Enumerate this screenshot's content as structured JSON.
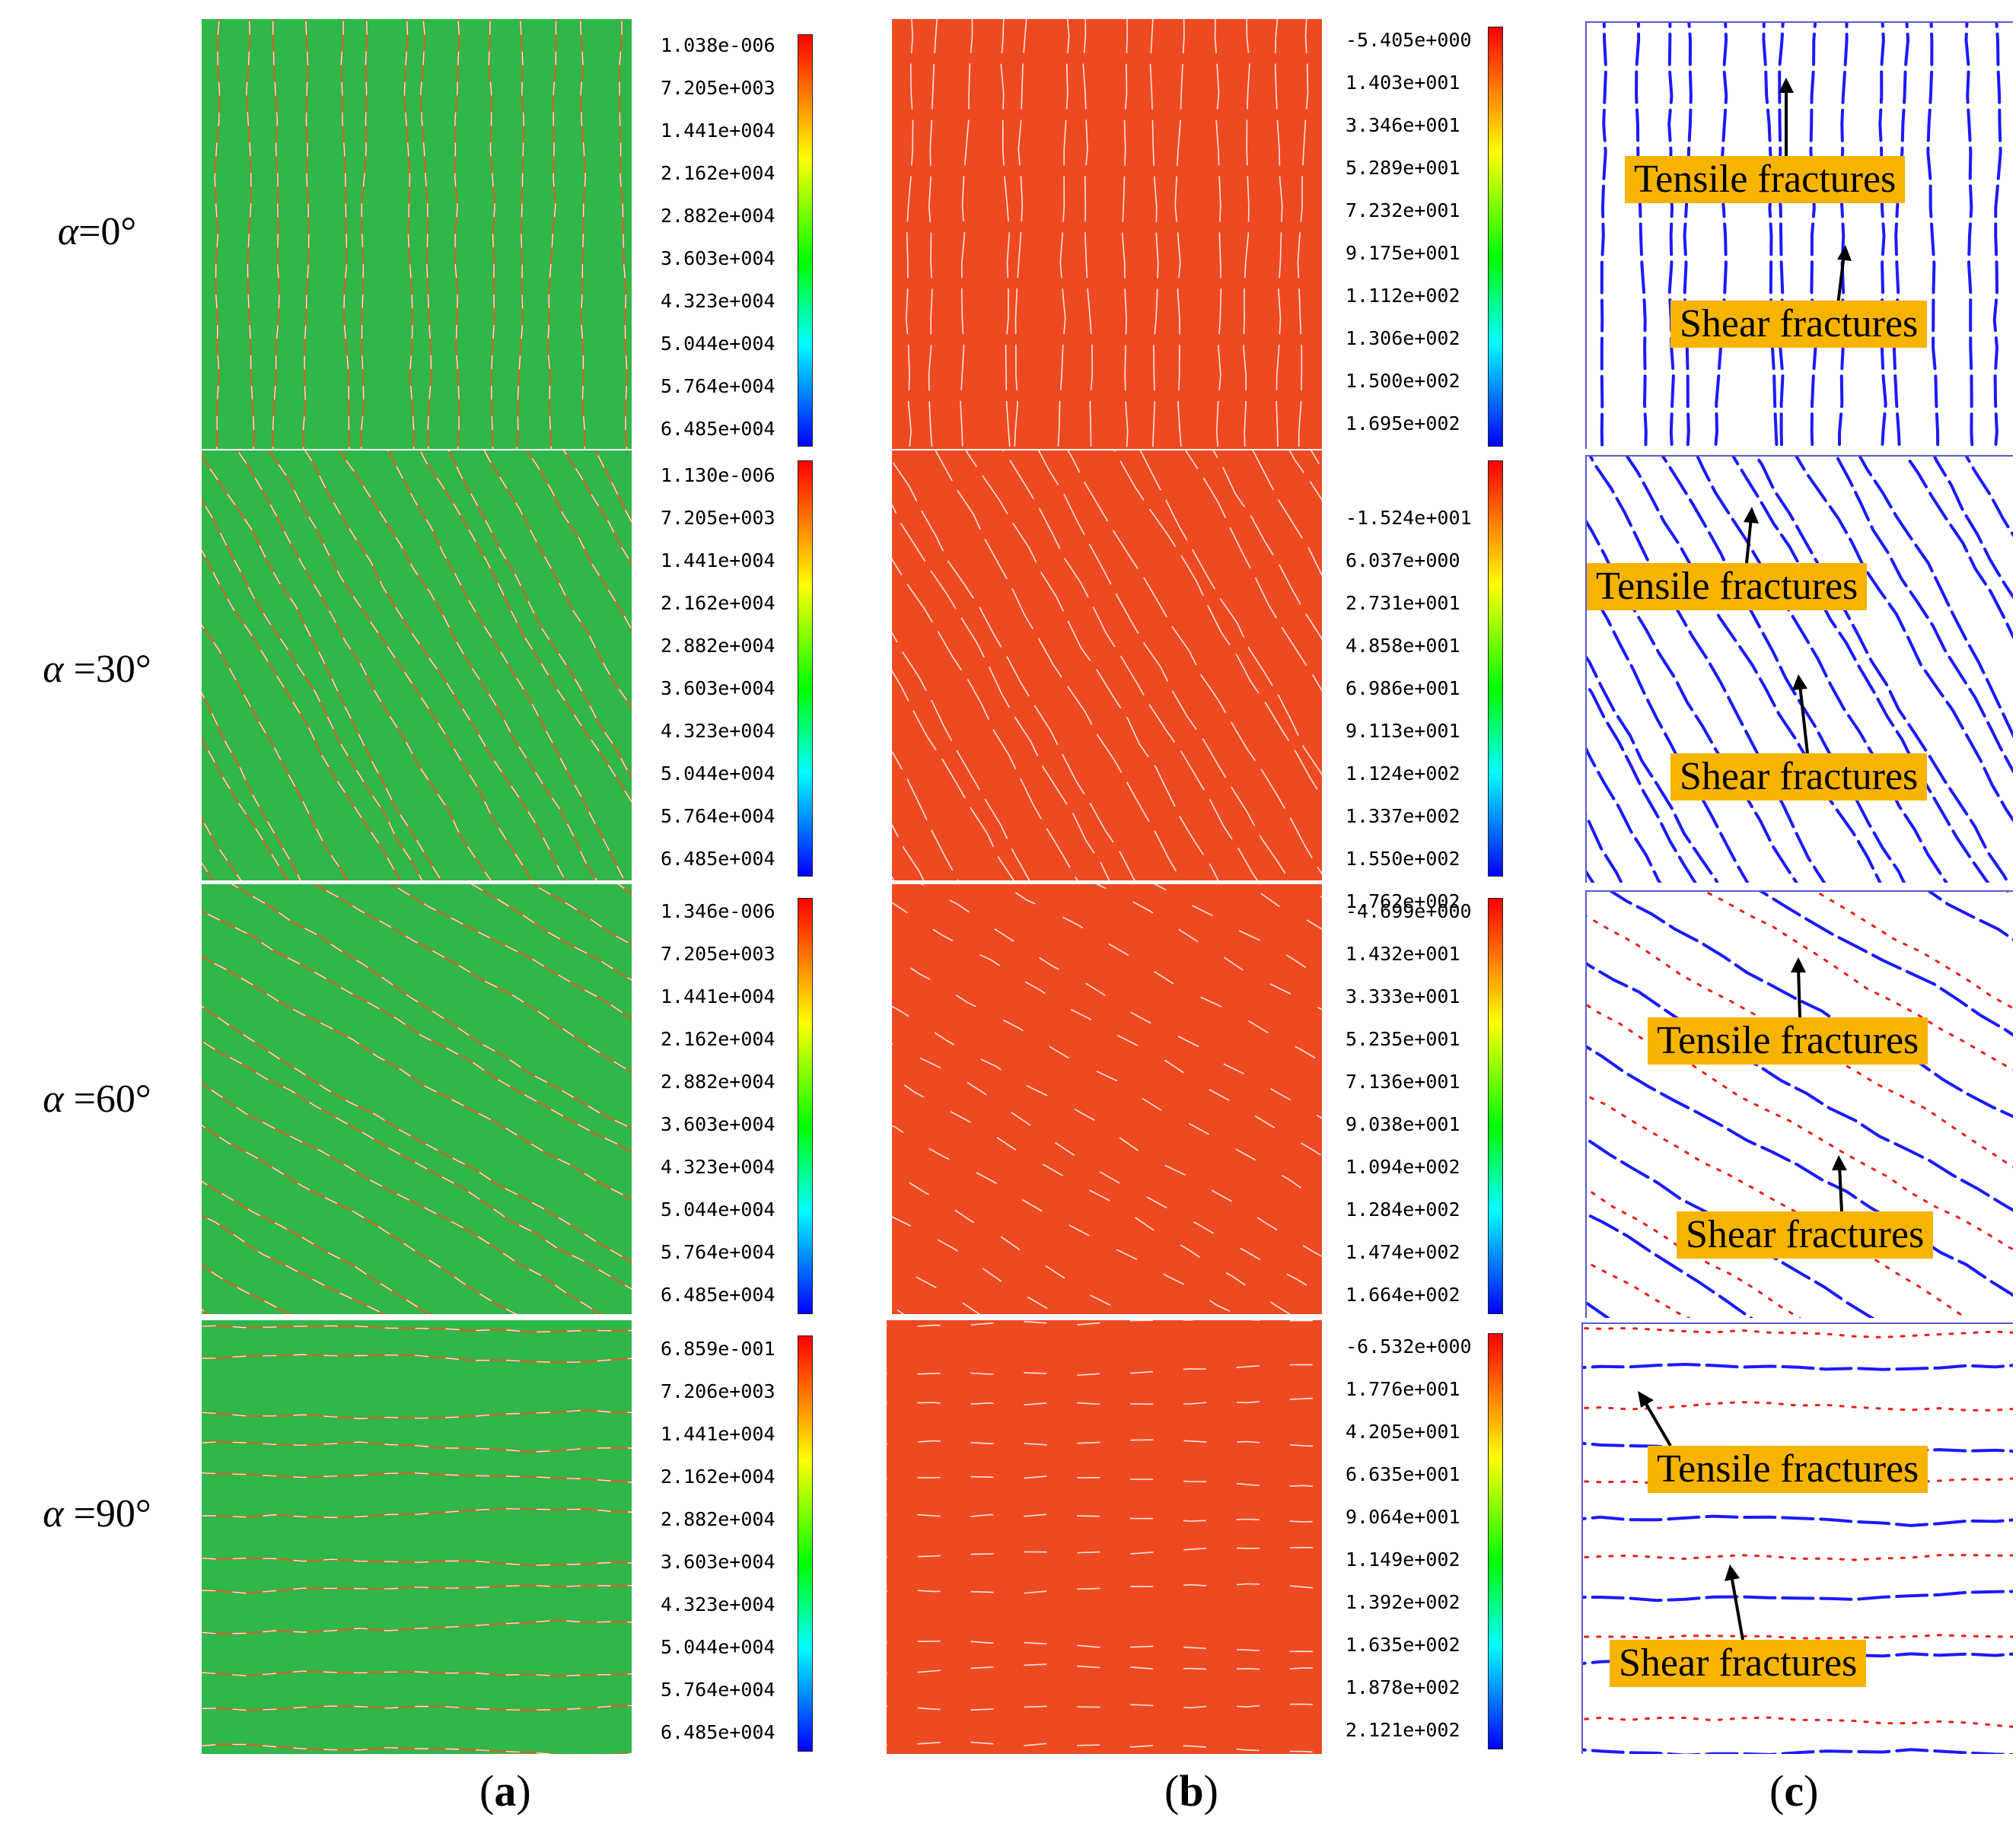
{
  "rows": [
    {
      "label_prefix": "α",
      "label_value": "=0°",
      "scale_a": [
        "1.038e-006",
        "7.205e+003",
        "1.441e+004",
        "2.162e+004",
        "2.882e+004",
        "3.603e+004",
        "4.323e+004",
        "5.044e+004",
        "5.764e+004",
        "6.485e+004"
      ],
      "scale_b": [
        "-5.405e+000",
        "1.403e+001",
        "3.346e+001",
        "5.289e+001",
        "7.232e+001",
        "9.175e+001",
        "1.112e+002",
        "1.306e+002",
        "1.500e+002",
        "1.695e+002"
      ],
      "tensile": "Tensile fractures",
      "shear": "Shear fractures"
    },
    {
      "label_prefix": "α",
      "label_value": " =30°",
      "scale_a": [
        "1.130e-006",
        "7.205e+003",
        "1.441e+004",
        "2.162e+004",
        "2.882e+004",
        "3.603e+004",
        "4.323e+004",
        "5.044e+004",
        "5.764e+004",
        "6.485e+004"
      ],
      "scale_b": [
        "-1.524e+001",
        "6.037e+000",
        "2.731e+001",
        "4.858e+001",
        "6.986e+001",
        "9.113e+001",
        "1.124e+002",
        "1.337e+002",
        "1.550e+002",
        "1.762e+002"
      ],
      "tensile": "Tensile fractures",
      "shear": "Shear fractures"
    },
    {
      "label_prefix": "α",
      "label_value": " =60°",
      "scale_a": [
        "1.346e-006",
        "7.205e+003",
        "1.441e+004",
        "2.162e+004",
        "2.882e+004",
        "3.603e+004",
        "4.323e+004",
        "5.044e+004",
        "5.764e+004",
        "6.485e+004"
      ],
      "scale_b": [
        "-4.699e+000",
        "1.432e+001",
        "3.333e+001",
        "5.235e+001",
        "7.136e+001",
        "9.038e+001",
        "1.094e+002",
        "1.284e+002",
        "1.474e+002",
        "1.664e+002"
      ],
      "tensile": "Tensile fractures",
      "shear": "Shear fractures"
    },
    {
      "label_prefix": "α",
      "label_value": " =90°",
      "scale_a": [
        "6.859e-001",
        "7.206e+003",
        "1.441e+004",
        "2.162e+004",
        "2.882e+004",
        "3.603e+004",
        "4.323e+004",
        "5.044e+004",
        "5.764e+004",
        "6.485e+004"
      ],
      "scale_b": [
        "-6.532e+000",
        "1.776e+001",
        "4.205e+001",
        "6.635e+001",
        "9.064e+001",
        "1.149e+002",
        "1.392e+002",
        "1.635e+002",
        "1.878e+002",
        "2.121e+002"
      ],
      "tensile": "Tensile fractures",
      "shear": "Shear fractures"
    }
  ],
  "columns": {
    "a": {
      "open": "(",
      "letter": "a",
      "close": ")"
    },
    "b": {
      "open": "(",
      "letter": "b",
      "close": ")"
    },
    "c": {
      "open": "(",
      "letter": "c",
      "close": ")"
    }
  },
  "colors": {
    "green": "#2eb84a",
    "red": "#ee4a22",
    "blue": "#1a1aff",
    "tag": "#f6b400"
  }
}
